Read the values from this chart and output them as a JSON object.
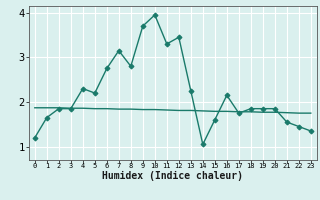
{
  "xlabel": "Humidex (Indice chaleur)",
  "x_values": [
    0,
    1,
    2,
    3,
    4,
    5,
    6,
    7,
    8,
    9,
    10,
    11,
    12,
    13,
    14,
    15,
    16,
    17,
    18,
    19,
    20,
    21,
    22,
    23
  ],
  "line1_y": [
    1.2,
    1.65,
    1.85,
    1.85,
    2.3,
    2.2,
    2.75,
    3.15,
    2.8,
    3.7,
    3.95,
    3.3,
    3.45,
    2.25,
    1.05,
    1.6,
    2.15,
    1.75,
    1.85,
    1.85,
    1.85,
    1.55,
    1.45,
    1.35
  ],
  "line2_y": [
    1.87,
    1.87,
    1.87,
    1.86,
    1.86,
    1.85,
    1.85,
    1.84,
    1.84,
    1.83,
    1.83,
    1.82,
    1.81,
    1.81,
    1.8,
    1.79,
    1.79,
    1.78,
    1.78,
    1.77,
    1.77,
    1.76,
    1.75,
    1.75
  ],
  "line_color": "#1a7a6a",
  "bg_color": "#daf0ee",
  "grid_color": "#ffffff",
  "ylim": [
    0.7,
    4.15
  ],
  "xlim": [
    -0.5,
    23.5
  ],
  "yticks": [
    1,
    2,
    3,
    4
  ],
  "xticks": [
    0,
    1,
    2,
    3,
    4,
    5,
    6,
    7,
    8,
    9,
    10,
    11,
    12,
    13,
    14,
    15,
    16,
    17,
    18,
    19,
    20,
    21,
    22,
    23
  ]
}
